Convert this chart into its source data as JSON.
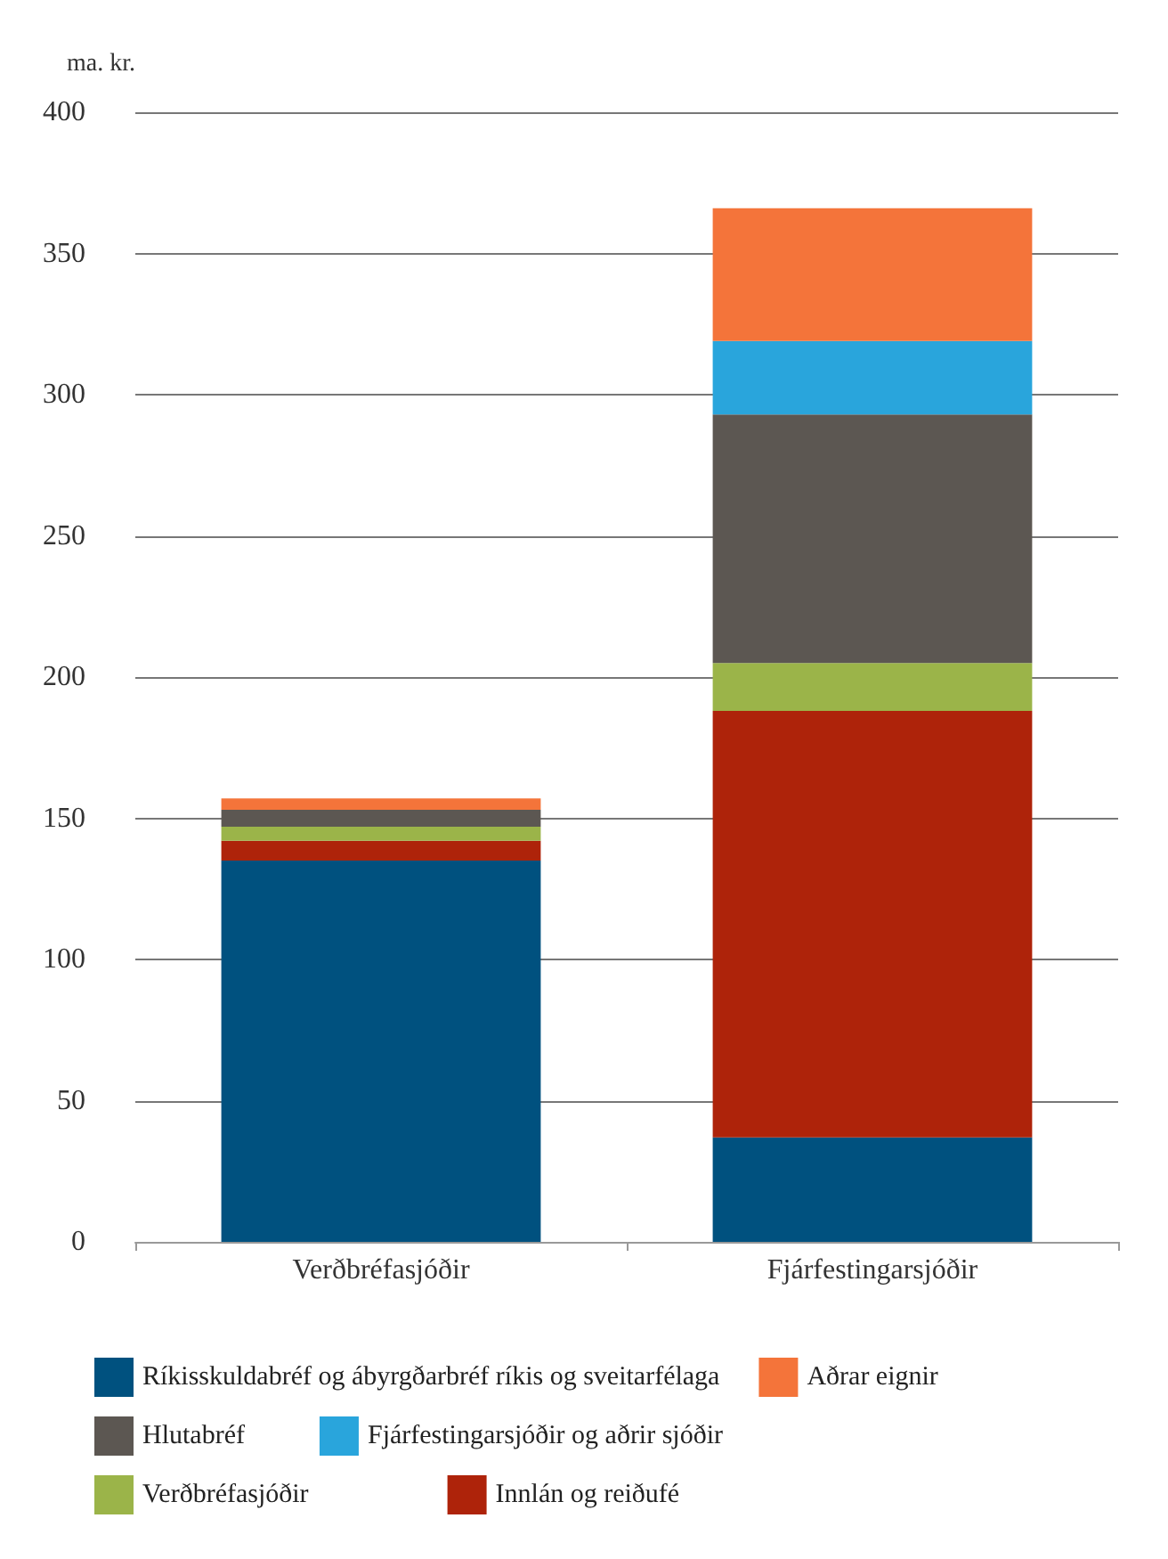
{
  "chart_data": {
    "type": "bar",
    "stacked": true,
    "ylabel": "ma. kr.",
    "categories": [
      "Verðbréfasjóðir",
      "Fjárfestingarsjóðir"
    ],
    "series": [
      {
        "name": "Ríkisskuldabréf og ábyrgðarbréf ríkis og sveitarfélaga",
        "color": "#00517f",
        "values": [
          135,
          37
        ]
      },
      {
        "name": "Innlán og reiðufé",
        "color": "#ae230a",
        "values": [
          7,
          151
        ]
      },
      {
        "name": "Verðbréfasjóðir",
        "color": "#9bb449",
        "values": [
          5,
          17
        ]
      },
      {
        "name": "Hlutabréf",
        "color": "#5c5752",
        "values": [
          6,
          88
        ]
      },
      {
        "name": "Fjárfestingarsjóðir og aðrir sjóðir",
        "color": "#29a5dc",
        "values": [
          0,
          26
        ]
      },
      {
        "name": "Aðrar eignir",
        "color": "#f4743a",
        "values": [
          4,
          47
        ]
      }
    ],
    "ylim": [
      0,
      400
    ],
    "yticks": [
      0,
      50,
      100,
      150,
      200,
      250,
      300,
      350,
      400
    ],
    "grid": "y",
    "legend": "bottom"
  }
}
